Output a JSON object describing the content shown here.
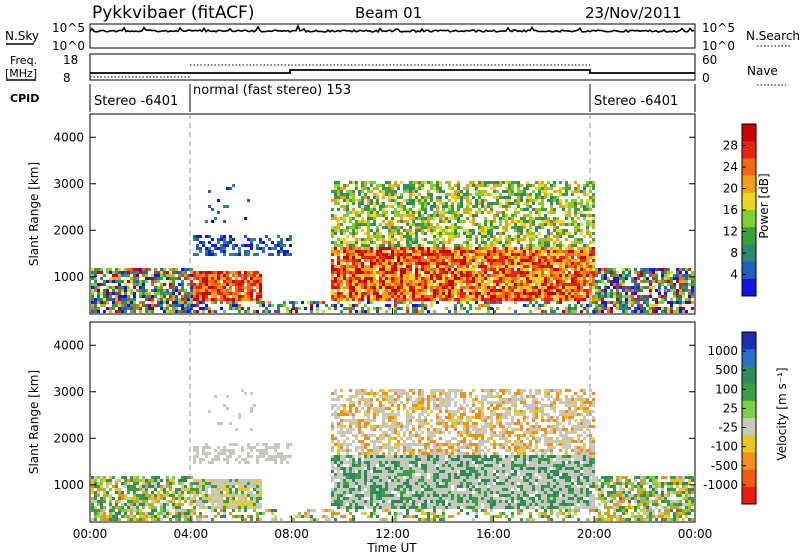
{
  "header": {
    "title": "Pykkvibaer (fitACF)",
    "beam": "Beam 01",
    "date": "23/Nov/2011"
  },
  "nsky_panel": {
    "left_label": "N.Sky",
    "right_label": "N.Search",
    "left_ticks": [
      "10^5",
      "10^0"
    ],
    "right_ticks": [
      "10^5",
      "10^0"
    ]
  },
  "freq_panel": {
    "left_label_1": "Freq.",
    "left_label_2": "[MHz]",
    "right_label": "Nave",
    "left_ticks": [
      "18",
      "8"
    ],
    "right_ticks": [
      "60",
      "0"
    ]
  },
  "cpid": {
    "label": "CPID",
    "segments": [
      {
        "text": "Stereo -6401"
      },
      {
        "text": "normal (fast stereo) 153"
      },
      {
        "text": "Stereo -6401"
      }
    ]
  },
  "chart_data": [
    {
      "type": "heatmap",
      "name": "power",
      "ylabel": "Slant Range [km]",
      "xlabel": "Time UT",
      "x_ticks": [
        "00:00",
        "04:00",
        "08:00",
        "12:00",
        "16:00",
        "20:00",
        "00:00"
      ],
      "y_ticks": [
        "1000",
        "2000",
        "3000",
        "4000"
      ],
      "ylim": [
        200,
        4500
      ],
      "colorbar": {
        "label": "Power [dB]",
        "ticks": [
          "4",
          "8",
          "12",
          "16",
          "20",
          "24",
          "28"
        ]
      },
      "palette": [
        "#1414e6",
        "#1f5fbf",
        "#2b8a6e",
        "#3aa03a",
        "#7ed02e",
        "#e8d81e",
        "#f2a01a",
        "#f06a14",
        "#e8240e",
        "#cc0000"
      ]
    },
    {
      "type": "heatmap",
      "name": "velocity",
      "ylabel": "Slant Range [km]",
      "xlabel": "Time UT",
      "x_ticks": [
        "00:00",
        "04:00",
        "08:00",
        "12:00",
        "16:00",
        "20:00",
        "00:00"
      ],
      "y_ticks": [
        "1000",
        "2000",
        "3000",
        "4000"
      ],
      "ylim": [
        200,
        4500
      ],
      "colorbar": {
        "label": "Velocity [m s⁻¹]",
        "ticks": [
          "1000",
          "500",
          "100",
          "25",
          "-25",
          "-100",
          "-500",
          "-1000"
        ]
      },
      "palette": [
        "#1a2fb0",
        "#2a6ec8",
        "#2e8a5a",
        "#3aa040",
        "#7ad040",
        "#c8c8c0",
        "#e8c81e",
        "#f0901a",
        "#f05a12",
        "#e81e0a"
      ]
    }
  ],
  "xaxis": {
    "title": "Time UT",
    "ticks": [
      "00:00",
      "04:00",
      "08:00",
      "12:00",
      "16:00",
      "20:00",
      "00:00"
    ]
  }
}
